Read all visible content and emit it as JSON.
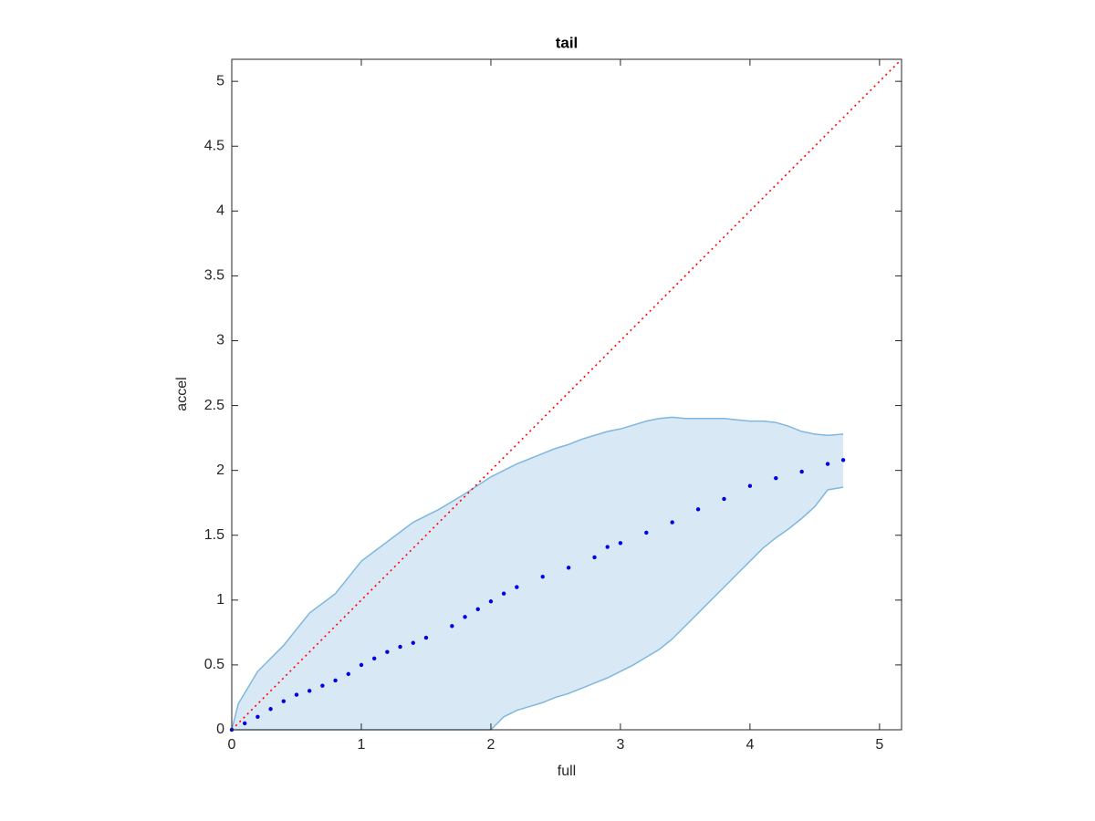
{
  "chart_data": {
    "type": "line",
    "title": "tail",
    "x_label": "full",
    "y_label": "accel",
    "xlim": [
      0,
      5.17
    ],
    "ylim": [
      0,
      5.17
    ],
    "xticks": [
      0,
      1,
      2,
      3,
      4,
      5
    ],
    "yticks": [
      0,
      0.5,
      1,
      1.5,
      2,
      2.5,
      3,
      3.5,
      4,
      4.5,
      5
    ],
    "grid": false,
    "band": {
      "color": "#7fb8de",
      "fill": "#d8e8f4",
      "x": [
        0,
        0.05,
        0.2,
        0.4,
        0.6,
        0.8,
        1.0,
        1.2,
        1.4,
        1.6,
        1.8,
        2.0,
        2.1,
        2.2,
        2.3,
        2.4,
        2.5,
        2.6,
        2.7,
        2.8,
        2.9,
        3.0,
        3.1,
        3.2,
        3.3,
        3.4,
        3.5,
        3.6,
        3.7,
        3.8,
        3.9,
        4.0,
        4.1,
        4.2,
        4.3,
        4.4,
        4.5,
        4.6,
        4.72
      ],
      "upper": [
        0,
        0.2,
        0.45,
        0.65,
        0.9,
        1.05,
        1.3,
        1.45,
        1.6,
        1.7,
        1.82,
        1.95,
        2.0,
        2.05,
        2.09,
        2.13,
        2.17,
        2.2,
        2.24,
        2.27,
        2.3,
        2.32,
        2.35,
        2.38,
        2.4,
        2.41,
        2.4,
        2.4,
        2.4,
        2.4,
        2.39,
        2.38,
        2.38,
        2.37,
        2.34,
        2.3,
        2.28,
        2.27,
        2.28
      ],
      "lower": [
        0,
        0,
        0,
        0,
        0,
        0,
        0,
        0,
        0,
        0,
        0,
        0,
        0.1,
        0.15,
        0.18,
        0.21,
        0.25,
        0.28,
        0.32,
        0.36,
        0.4,
        0.45,
        0.5,
        0.56,
        0.62,
        0.7,
        0.8,
        0.9,
        1.0,
        1.1,
        1.2,
        1.3,
        1.4,
        1.48,
        1.55,
        1.63,
        1.72,
        1.85,
        1.87
      ]
    },
    "points": {
      "color": "#0000e6",
      "x": [
        0,
        0.1,
        0.2,
        0.3,
        0.4,
        0.5,
        0.6,
        0.7,
        0.8,
        0.9,
        1.0,
        1.1,
        1.2,
        1.3,
        1.4,
        1.5,
        1.7,
        1.8,
        1.9,
        2.0,
        2.1,
        2.2,
        2.4,
        2.6,
        2.8,
        2.9,
        3.0,
        3.2,
        3.4,
        3.6,
        3.8,
        4.0,
        4.2,
        4.4,
        4.6,
        4.72
      ],
      "y": [
        0,
        0.05,
        0.1,
        0.16,
        0.22,
        0.27,
        0.3,
        0.34,
        0.38,
        0.43,
        0.5,
        0.55,
        0.6,
        0.64,
        0.67,
        0.71,
        0.8,
        0.87,
        0.93,
        0.99,
        1.05,
        1.1,
        1.18,
        1.25,
        1.33,
        1.41,
        1.44,
        1.52,
        1.6,
        1.7,
        1.78,
        1.88,
        1.94,
        1.99,
        2.05,
        2.08
      ]
    },
    "reference_line": {
      "color": "#ff0000",
      "x": [
        0,
        5.17
      ],
      "y": [
        0,
        5.17
      ]
    }
  }
}
